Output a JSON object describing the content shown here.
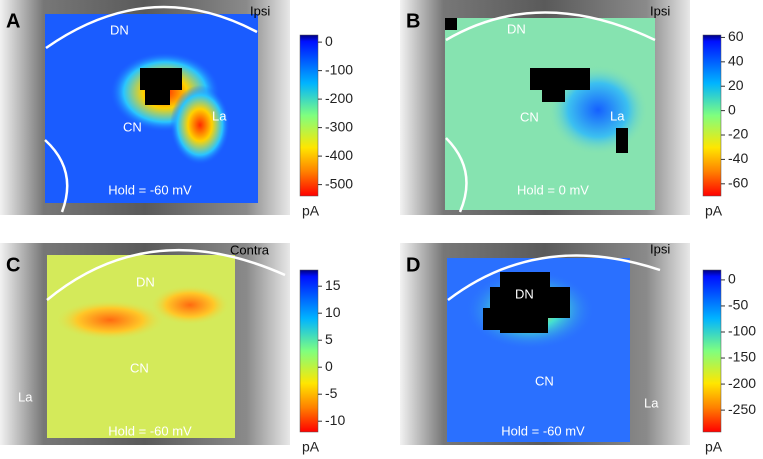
{
  "panels": [
    {
      "letter": "A",
      "side": "Ipsi",
      "regions": [
        "DN",
        "CN",
        "La"
      ],
      "hold": "Hold = -60 mV",
      "colorbar": {
        "ylim": [
          -540,
          25
        ],
        "ticks": [
          0,
          -100,
          -200,
          -300,
          -400,
          -500
        ],
        "unit": "pA"
      }
    },
    {
      "letter": "B",
      "side": "Ipsi",
      "regions": [
        "DN",
        "CN",
        "La"
      ],
      "hold": "Hold = 0 mV",
      "colorbar": {
        "ylim": [
          -70,
          62
        ],
        "ticks": [
          60,
          40,
          20,
          0,
          -20,
          -40,
          -60
        ],
        "unit": "pA"
      }
    },
    {
      "letter": "C",
      "side": "Contra",
      "regions": [
        "DN",
        "CN",
        "La"
      ],
      "hold": "Hold = -60 mV",
      "colorbar": {
        "ylim": [
          -12,
          18
        ],
        "ticks": [
          15,
          10,
          5,
          0,
          -5,
          -10
        ],
        "unit": "pA"
      }
    },
    {
      "letter": "D",
      "side": "Ipsi",
      "regions": [
        "DN",
        "CN",
        "La"
      ],
      "hold": "Hold = -60 mV",
      "colorbar": {
        "ylim": [
          -292,
          19
        ],
        "ticks": [
          0,
          -50,
          -100,
          -150,
          -200,
          -250
        ],
        "unit": "pA"
      }
    }
  ]
}
